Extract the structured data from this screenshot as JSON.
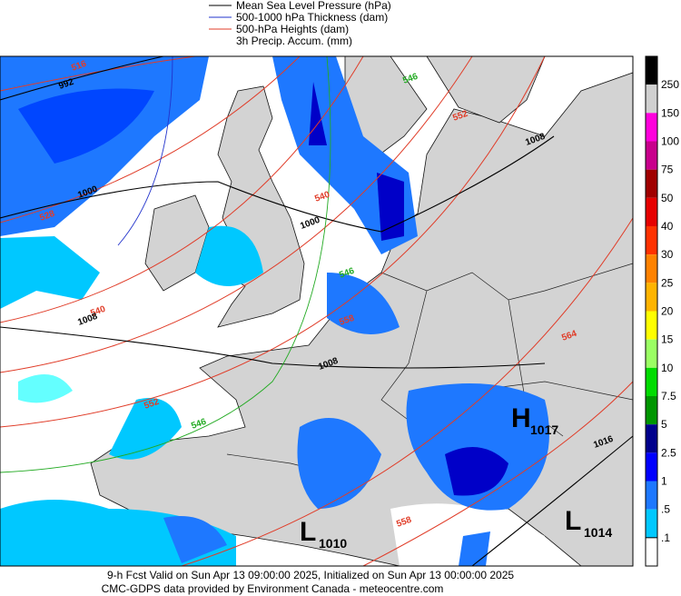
{
  "legend": {
    "items": [
      "Mean Sea Level Pressure (hPa)",
      "500-1000 hPa Thickness (dam)",
      "500-hPa Heights (dam)",
      "3h Precip. Accum. (mm)"
    ]
  },
  "colorbar": {
    "labels": [
      "250",
      "150",
      "100",
      "75",
      "50",
      "40",
      "30",
      "25",
      "20",
      "15",
      "10",
      "7.5",
      "5",
      "2.5",
      "1",
      ".5",
      ".1"
    ]
  },
  "contour_labels": [
    "516",
    "992",
    "546",
    "552",
    "1008",
    "1000",
    "528",
    "540",
    "1000",
    "546",
    "540",
    "1008",
    "558",
    "1008",
    "552",
    "546",
    "564",
    "1016",
    "558"
  ],
  "centers": [
    {
      "letter": "H",
      "value": "1017"
    },
    {
      "letter": "L",
      "value": "1010"
    },
    {
      "letter": "L",
      "value": "1014"
    }
  ],
  "footer": {
    "line1": "9-h Fcst Valid on Sun Apr 13 09:00:00 2025, Initialized on Sun Apr 13 00:00:00 2025",
    "line2": "CMC-GDPS data provided by Environment Canada - meteocentre.com"
  }
}
